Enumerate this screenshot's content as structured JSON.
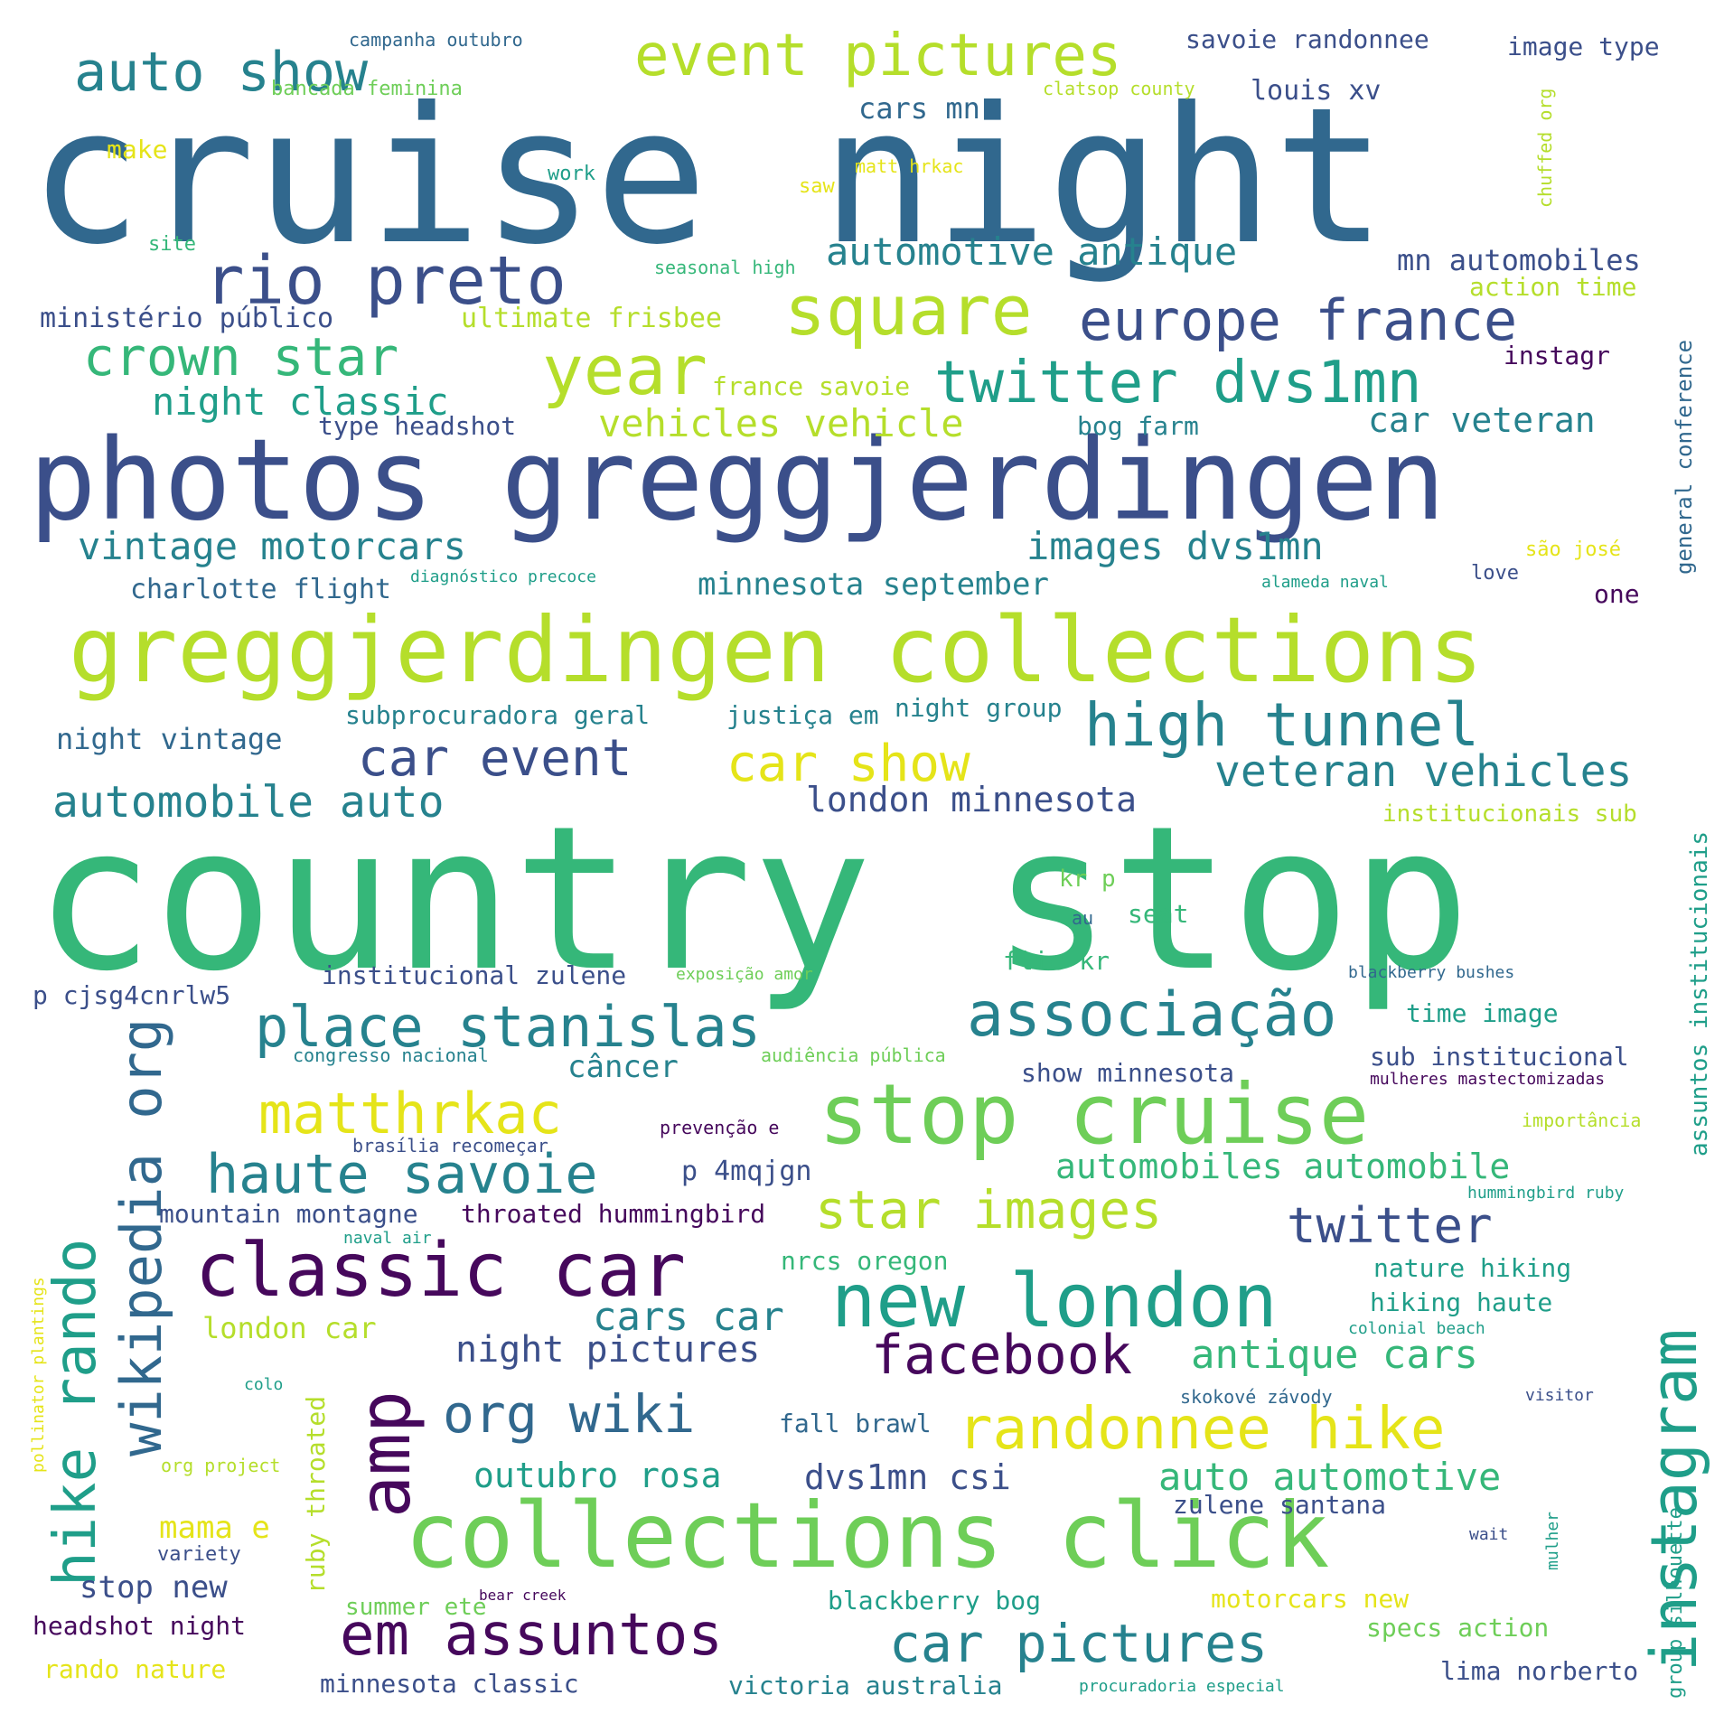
{
  "palette": {
    "darkpurple": "#46085c",
    "indigo": "#3b4f8a",
    "steel": "#31688e",
    "teal": "#26828e",
    "sea": "#1f9e89",
    "green": "#35b779",
    "lime": "#6ece58",
    "yellowgreen": "#b5de2b",
    "yellow": "#e5e419"
  },
  "words": [
    "cruise night",
    "country stop",
    "photos greggjerdingen",
    "greggjerdingen collections",
    "collections click",
    "stop cruise",
    "classic car",
    "new london",
    "instagram",
    "amp",
    "rio preto",
    "event pictures",
    "auto show",
    "square",
    "year",
    "europe france",
    "twitter dvs1mn",
    "crown star",
    "night classic",
    "associação",
    "place stanislas",
    "matthrkac",
    "haute savoie",
    "star images",
    "hike rando",
    "wikipedia org",
    "high tunnel",
    "car event",
    "car show",
    "veteran vehicles",
    "automobile auto",
    "org wiki",
    "randonnee hike",
    "facebook",
    "em assuntos",
    "car pictures",
    "twitter",
    "vintage motorcars",
    "images dvs1mn",
    "automotive antique",
    "vehicles vehicle",
    "automobiles automobile",
    "antique cars",
    "auto automotive",
    "cars car",
    "night pictures",
    "outubro rosa",
    "dvs1mn csi",
    "london minnesota",
    "mn automobiles",
    "car veteran",
    "minnesota september",
    "cars mn",
    "savoie randonnee",
    "image type",
    "louis xv",
    "campanha outubro",
    "bancada feminina",
    "clatsop county",
    "chuffed org",
    "make",
    "matt hrkac",
    "work",
    "saw",
    "site",
    "seasonal high",
    "ministério público",
    "ultimate frisbee",
    "action time",
    "general conference",
    "instagr",
    "france savoie",
    "type headshot",
    "bog farm",
    "charlotte flight",
    "diagnóstico precoce",
    "alameda naval",
    "são josé",
    "love",
    "one",
    "subprocuradora geral",
    "justiça em",
    "night group",
    "night vintage",
    "institucionais sub",
    "kr p",
    "au",
    "seat",
    "flic kr",
    "p cjsg4cnrlw5",
    "institucional zulene",
    "exposição amor",
    "blackberry bushes",
    "assuntos institucionais",
    "time image",
    "congresso nacional",
    "audiência pública",
    "câncer",
    "show minnesota",
    "sub institucional",
    "mulheres mastectomizadas",
    "prevenção e",
    "brasília recomeçar",
    "importância",
    "p 4mqjgn",
    "mountain montagne",
    "throated hummingbird",
    "hummingbird ruby",
    "pollinator plantings",
    "naval air",
    "nrcs oregon",
    "nature hiking",
    "hiking haute",
    "london car",
    "colonial beach",
    "ruby throated",
    "colo",
    "fall brawl",
    "skokové závody",
    "visitor",
    "group silhouette",
    "org project",
    "mama e",
    "zulene santana",
    "variety",
    "wait",
    "mulher",
    "stop new",
    "summer ete",
    "bear creek",
    "blackberry bog",
    "motorcars new",
    "headshot night",
    "specs action",
    "rando nature",
    "minnesota classic",
    "victoria australia",
    "procuradoria especial",
    "lima norberto"
  ]
}
